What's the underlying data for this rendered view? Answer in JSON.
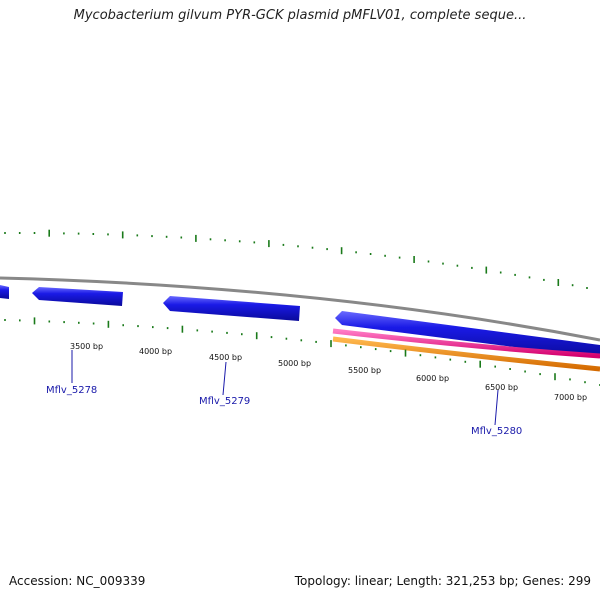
{
  "title": "Mycobacterium gilvum PYR-GCK plasmid pMFLV01, complete seque...",
  "footer": {
    "accession": "Accession: NC_009339",
    "summary": "Topology: linear; Length: 321,253 bp; Genes: 299"
  },
  "colors": {
    "backbone": "#888888",
    "gene": "#1a1ae6",
    "feature_pink": "#ff1493",
    "feature_orange": "#ff8c00",
    "tick": "#1a7a1a",
    "label_line": "#1a1aaa"
  },
  "scale_labels": [
    "3500 bp",
    "4000 bp",
    "4500 bp",
    "5000 bp",
    "5500 bp",
    "6000 bp",
    "6500 bp",
    "7000 bp"
  ],
  "gene_labels": [
    "Mflv_5278",
    "Mflv_5279",
    "Mflv_5280"
  ]
}
